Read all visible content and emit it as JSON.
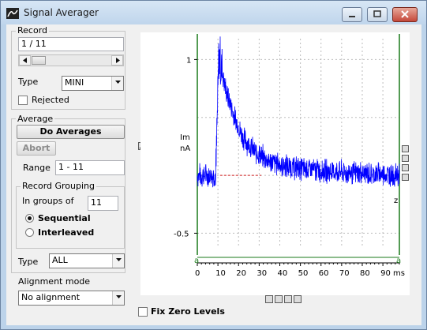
{
  "window": {
    "title": "Signal Averager"
  },
  "record": {
    "group_label": "Record",
    "value": "1 / 11",
    "type_label": "Type",
    "type_value": "MINI",
    "rejected_label": "Rejected",
    "rejected_checked": false
  },
  "average": {
    "group_label": "Average",
    "do_averages_label": "Do Averages",
    "abort_label": "Abort",
    "range_label": "Range",
    "range_value": "1 - 11"
  },
  "grouping": {
    "group_label": "Record Grouping",
    "in_groups_label": "In groups of",
    "in_groups_value": "11",
    "sequential_label": "Sequential",
    "interleaved_label": "Interleaved",
    "selected": "Sequential"
  },
  "bottom": {
    "type_label": "Type",
    "type_value": "ALL",
    "alignment_label": "Alignment mode",
    "alignment_value": "No alignment"
  },
  "plot": {
    "fix_zero_label": "Fix Zero Levels",
    "cursor_a_left": "a",
    "cursor_a_right": "a",
    "cursor_z": "z"
  },
  "chart_data": {
    "type": "line",
    "title": "",
    "ylabel_name": "Im",
    "ylabel_unit": "nA",
    "xlabel": "ms",
    "xlim": [
      0,
      98
    ],
    "ylim": [
      -0.62,
      1.18
    ],
    "x_ticks": [
      0,
      10,
      20,
      30,
      40,
      50,
      60,
      70,
      80,
      90
    ],
    "x_tick_labels": [
      "0",
      "10",
      "20",
      "30",
      "40",
      "50",
      "60",
      "70",
      "80",
      "90 ms"
    ],
    "y_ticks": [
      1,
      -0.5
    ],
    "y_tick_labels": [
      "1",
      "-0.5"
    ],
    "grid": true,
    "baseline_y": 0,
    "baseline_x_range": [
      11,
      31
    ],
    "series": [
      {
        "color": "#0000ff",
        "description_points": {
          "x": [
            0,
            9,
            10.5,
            11.5,
            14,
            18,
            22,
            28,
            35,
            45,
            60,
            75,
            90,
            98
          ],
          "y": [
            0.0,
            0.0,
            1.05,
            0.95,
            0.72,
            0.5,
            0.33,
            0.2,
            0.12,
            0.07,
            0.04,
            0.02,
            0.01,
            0.0
          ]
        }
      }
    ],
    "cursor_color": "#1a7a1a"
  }
}
